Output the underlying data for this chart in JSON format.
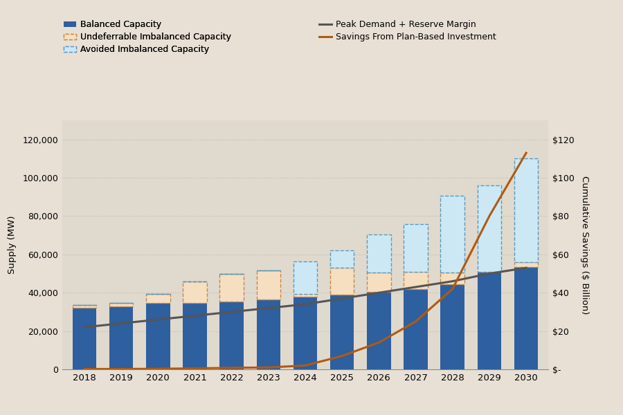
{
  "years": [
    2018,
    2019,
    2020,
    2021,
    2022,
    2023,
    2024,
    2025,
    2026,
    2027,
    2028,
    2029,
    2030
  ],
  "balanced_capacity": [
    32000,
    33000,
    34500,
    34500,
    35500,
    36500,
    38000,
    39000,
    40500,
    42000,
    44500,
    51000,
    53500
  ],
  "undeferrable_imbalanced": [
    1500,
    1500,
    5000,
    11500,
    14500,
    15000,
    1500,
    14000,
    10000,
    9000,
    6000,
    0,
    2500
  ],
  "avoided_imbalanced": [
    0,
    0,
    0,
    0,
    0,
    0,
    17000,
    9000,
    20000,
    25000,
    40000,
    45000,
    54000
  ],
  "peak_demand": [
    22000,
    24000,
    26000,
    28000,
    30000,
    32000,
    34000,
    37000,
    40000,
    43000,
    46000,
    50000,
    53000
  ],
  "savings_billions": [
    0.2,
    0.2,
    0.3,
    0.5,
    0.8,
    1.0,
    2.0,
    7.0,
    14.0,
    25.0,
    42.0,
    80.0,
    113.0
  ],
  "background_color": "#e8e0d5",
  "plot_bg_color": "#e0d9ce",
  "balanced_color": "#2E5F9E",
  "undeferrable_color": "#f5dfc0",
  "undeferrable_edge_color": "#c8874a",
  "avoided_color": "#cde8f5",
  "avoided_edge_color": "#5a9abf",
  "peak_demand_color": "#555555",
  "savings_color": "#b05a10",
  "ylabel_left": "Supply (MW)",
  "ylabel_right": "Cumulative Savings ($ Billion)",
  "ylim_left": [
    0,
    130000
  ],
  "ylim_right": [
    0,
    130
  ],
  "yticks_left": [
    0,
    20000,
    40000,
    60000,
    80000,
    100000,
    120000
  ],
  "ytick_labels_left": [
    "0",
    "20,000",
    "40,000",
    "60,000",
    "80,000",
    "100,000",
    "120,000"
  ],
  "yticks_right": [
    0,
    20,
    40,
    60,
    80,
    100,
    120
  ],
  "ytick_labels_right": [
    "$-",
    "$20",
    "$40",
    "$60",
    "$80",
    "$100",
    "$120"
  ],
  "legend_labels": [
    "Balanced Capacity",
    "Undeferrable Imbalanced Capacity",
    "Avoided Imbalanced Capacity",
    "Peak Demand + Reserve Margin",
    "Savings From Plan-Based Investment"
  ]
}
